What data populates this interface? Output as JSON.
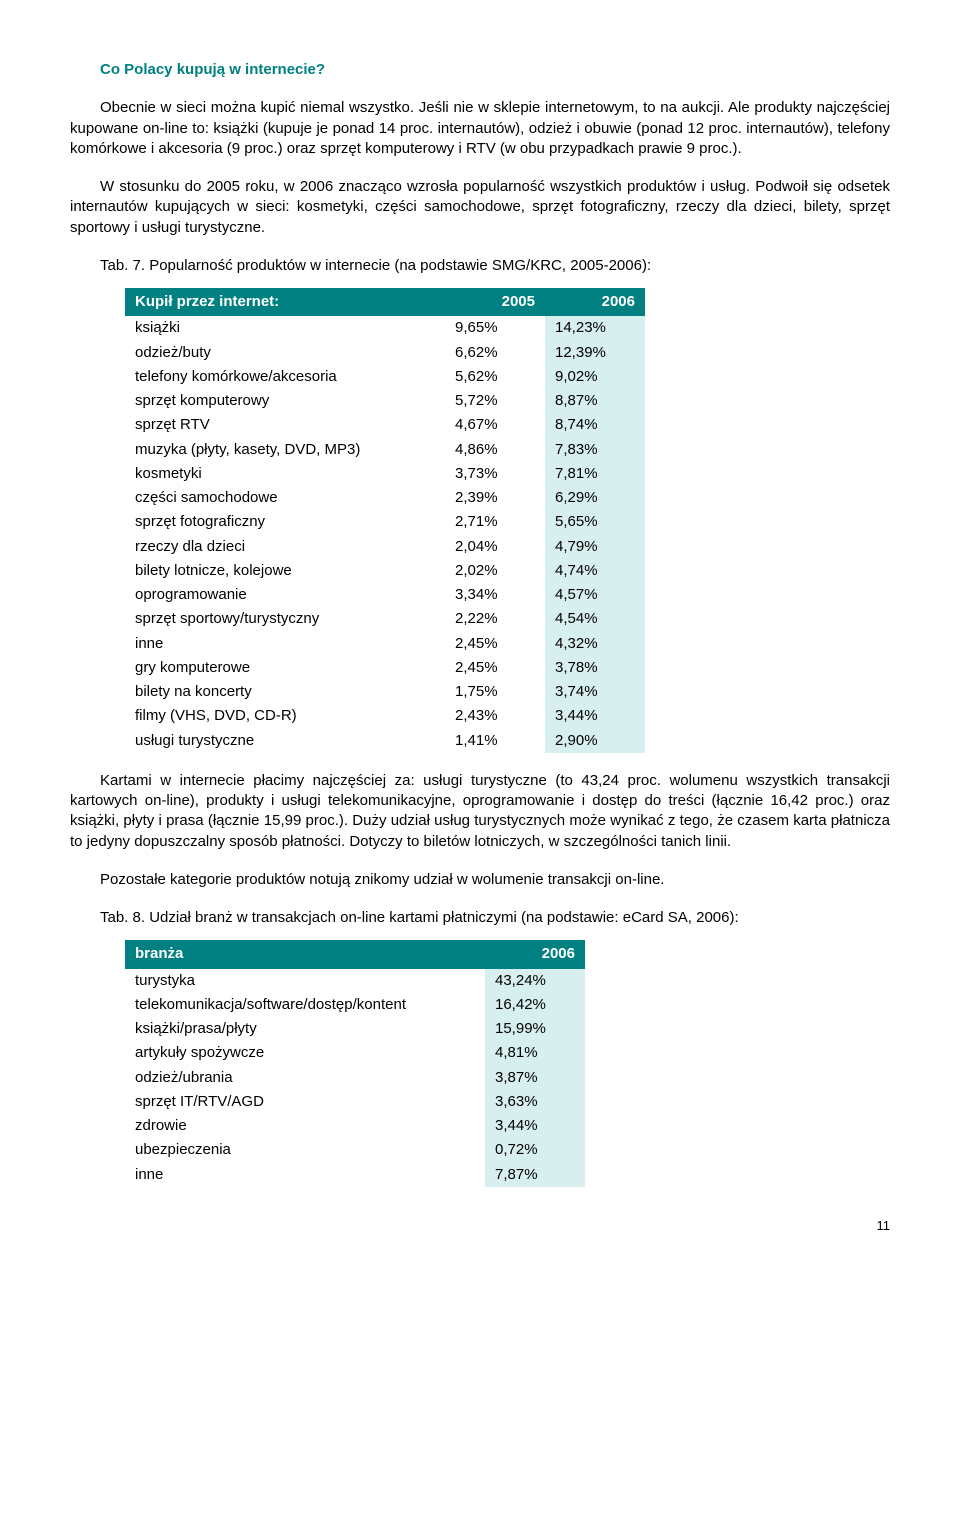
{
  "heading": "Co Polacy kupują w internecie?",
  "para1": "Obecnie w sieci można kupić niemal wszystko. Jeśli nie w sklepie internetowym, to na aukcji. Ale produkty najczęściej kupowane on-line to: książki (kupuje je ponad 14 proc. internautów), odzież i obuwie (ponad 12 proc. internautów), telefony komórkowe i akcesoria (9 proc.) oraz sprzęt komputerowy i RTV (w obu przypadkach prawie 9 proc.).",
  "para2": "W stosunku do 2005 roku, w 2006 znacząco wzrosła popularność wszystkich produktów i usług. Podwoił się odsetek internautów kupujących w sieci: kosmetyki, części samochodowe, sprzęt fotograficzny, rzeczy dla dzieci, bilety, sprzęt sportowy i usługi turystyczne.",
  "tab7_caption": "Tab. 7. Popularność produktów w internecie (na podstawie SMG/KRC, 2005-2006):",
  "tab7": {
    "header": {
      "c1": "Kupił przez internet:",
      "c2": "2005",
      "c3": "2006"
    },
    "rows": [
      {
        "label": "książki",
        "y2005": "9,65%",
        "y2006": "14,23%"
      },
      {
        "label": "odzież/buty",
        "y2005": "6,62%",
        "y2006": "12,39%"
      },
      {
        "label": "telefony komórkowe/akcesoria",
        "y2005": "5,62%",
        "y2006": "9,02%"
      },
      {
        "label": "sprzęt komputerowy",
        "y2005": "5,72%",
        "y2006": "8,87%"
      },
      {
        "label": "sprzęt RTV",
        "y2005": "4,67%",
        "y2006": "8,74%"
      },
      {
        "label": "muzyka (płyty, kasety, DVD, MP3)",
        "y2005": "4,86%",
        "y2006": "7,83%"
      },
      {
        "label": "kosmetyki",
        "y2005": "3,73%",
        "y2006": "7,81%"
      },
      {
        "label": "części samochodowe",
        "y2005": "2,39%",
        "y2006": "6,29%"
      },
      {
        "label": "sprzęt fotograficzny",
        "y2005": "2,71%",
        "y2006": "5,65%"
      },
      {
        "label": "rzeczy dla dzieci",
        "y2005": "2,04%",
        "y2006": "4,79%"
      },
      {
        "label": "bilety lotnicze, kolejowe",
        "y2005": "2,02%",
        "y2006": "4,74%"
      },
      {
        "label": "oprogramowanie",
        "y2005": "3,34%",
        "y2006": "4,57%"
      },
      {
        "label": "sprzęt sportowy/turystyczny",
        "y2005": "2,22%",
        "y2006": "4,54%"
      },
      {
        "label": "inne",
        "y2005": "2,45%",
        "y2006": "4,32%"
      },
      {
        "label": "gry komputerowe",
        "y2005": "2,45%",
        "y2006": "3,78%"
      },
      {
        "label": "bilety na koncerty",
        "y2005": "1,75%",
        "y2006": "3,74%"
      },
      {
        "label": "filmy (VHS, DVD, CD-R)",
        "y2005": "2,43%",
        "y2006": "3,44%"
      },
      {
        "label": "usługi turystyczne",
        "y2005": "1,41%",
        "y2006": "2,90%"
      }
    ],
    "col_widths": {
      "label": 320,
      "y2005": 100,
      "y2006": 100
    },
    "colors": {
      "header_bg": "#008080",
      "header_fg": "#ffffff",
      "alt_bg": "#d7efef"
    }
  },
  "para3": "Kartami w internecie płacimy najczęściej za: usługi turystyczne (to 43,24 proc. wolumenu wszystkich transakcji kartowych on-line), produkty i usługi telekomunikacyjne, oprogramowanie i dostęp do treści (łącznie 16,42 proc.) oraz książki, płyty i prasa (łącznie 15,99 proc.). Duży udział usług turystycznych może wynikać z tego, że czasem karta płatnicza to jedyny dopuszczalny sposób płatności. Dotyczy to biletów lotniczych, w szczególności tanich linii.",
  "para4": "Pozostałe kategorie produktów notują znikomy udział w wolumenie transakcji on-line.",
  "tab8_caption": "Tab. 8. Udział branż w transakcjach on-line kartami płatniczymi (na podstawie: eCard SA, 2006):",
  "tab8": {
    "header": {
      "c1": "branża",
      "c2": "2006"
    },
    "rows": [
      {
        "label": "turystyka",
        "val": "43,24%"
      },
      {
        "label": "telekomunikacja/software/dostęp/kontent",
        "val": "16,42%"
      },
      {
        "label": "książki/prasa/płyty",
        "val": "15,99%"
      },
      {
        "label": "artykuły spożywcze",
        "val": "4,81%"
      },
      {
        "label": "odzież/ubrania",
        "val": "3,87%"
      },
      {
        "label": "sprzęt IT/RTV/AGD",
        "val": "3,63%"
      },
      {
        "label": "zdrowie",
        "val": "3,44%"
      },
      {
        "label": "ubezpieczenia",
        "val": "0,72%"
      },
      {
        "label": "inne",
        "val": "7,87%"
      }
    ],
    "col_widths": {
      "label": 360,
      "val": 100
    },
    "colors": {
      "header_bg": "#008080",
      "header_fg": "#ffffff",
      "alt_bg": "#d7efef"
    }
  },
  "page_number": "11"
}
